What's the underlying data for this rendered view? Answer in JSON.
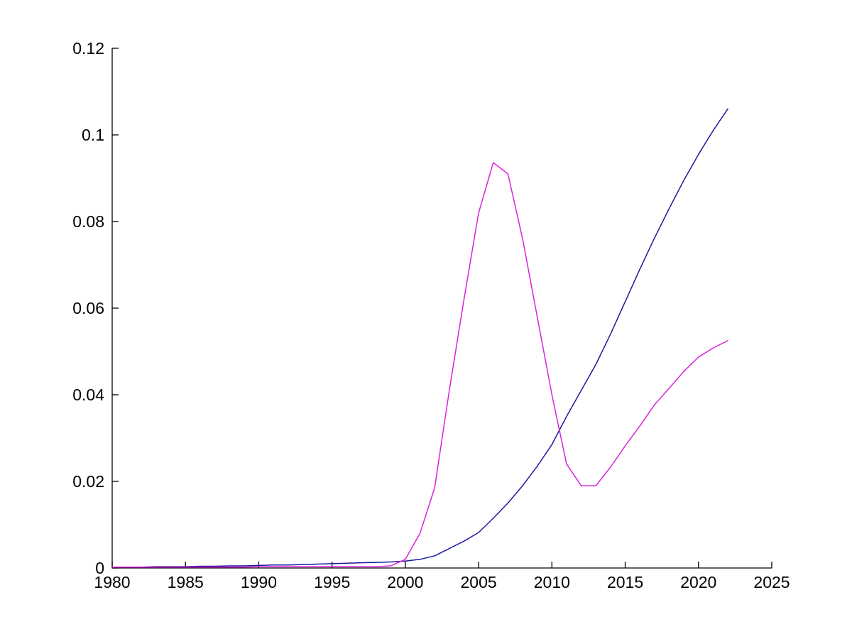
{
  "figure": {
    "background": "#ffffff",
    "axis_color": "#000000"
  },
  "chart_data": {
    "type": "line",
    "title": "",
    "xlabel": "",
    "ylabel": "",
    "grid": false,
    "legend": "none",
    "xlim": [
      1980,
      2025
    ],
    "ylim": [
      0,
      0.12
    ],
    "xticks": [
      1980,
      1985,
      1990,
      1995,
      2000,
      2005,
      2010,
      2015,
      2020,
      2025
    ],
    "xtick_labels": [
      "1980",
      "1985",
      "1990",
      "1995",
      "2000",
      "2005",
      "2010",
      "2015",
      "2020",
      "2025"
    ],
    "yticks": [
      0,
      0.02,
      0.04,
      0.06,
      0.08,
      0.1,
      0.12
    ],
    "ytick_labels": [
      "0",
      "0.02",
      "0.04",
      "0.06",
      "0.08",
      "0.1",
      "0.12"
    ],
    "x": [
      1980,
      1981,
      1982,
      1983,
      1984,
      1985,
      1986,
      1987,
      1988,
      1989,
      1990,
      1991,
      1992,
      1993,
      1994,
      1995,
      1996,
      1997,
      1998,
      1999,
      2000,
      2001,
      2002,
      2003,
      2004,
      2005,
      2006,
      2007,
      2008,
      2009,
      2010,
      2011,
      2012,
      2013,
      2014,
      2015,
      2016,
      2017,
      2018,
      2019,
      2020,
      2021,
      2022
    ],
    "series": [
      {
        "name": "blue-series",
        "color": "#1a1a9c",
        "values": [
          0.0002,
          0.0002,
          0.0002,
          0.0003,
          0.0003,
          0.0003,
          0.0004,
          0.0004,
          0.0005,
          0.0005,
          0.0006,
          0.0007,
          0.0007,
          0.0008,
          0.0009,
          0.001,
          0.0011,
          0.0012,
          0.0013,
          0.0014,
          0.0016,
          0.002,
          0.0028,
          0.0045,
          0.0062,
          0.0082,
          0.0115,
          0.015,
          0.019,
          0.0235,
          0.0285,
          0.035,
          0.041,
          0.047,
          0.054,
          0.0615,
          0.069,
          0.0762,
          0.083,
          0.0895,
          0.0955,
          0.101,
          0.106
        ]
      },
      {
        "name": "magenta-series",
        "color": "#da21da",
        "values": [
          0.0002,
          0.0002,
          0.0002,
          0.0002,
          0.0002,
          0.0002,
          0.0002,
          0.0002,
          0.0002,
          0.0002,
          0.0003,
          0.0003,
          0.0003,
          0.0003,
          0.0003,
          0.0003,
          0.0003,
          0.0003,
          0.0003,
          0.0005,
          0.002,
          0.008,
          0.0185,
          0.041,
          0.062,
          0.082,
          0.0936,
          0.091,
          0.076,
          0.058,
          0.04,
          0.024,
          0.019,
          0.019,
          0.0233,
          0.0282,
          0.0328,
          0.0377,
          0.0415,
          0.0454,
          0.0487,
          0.0508,
          0.0525
        ]
      }
    ]
  }
}
